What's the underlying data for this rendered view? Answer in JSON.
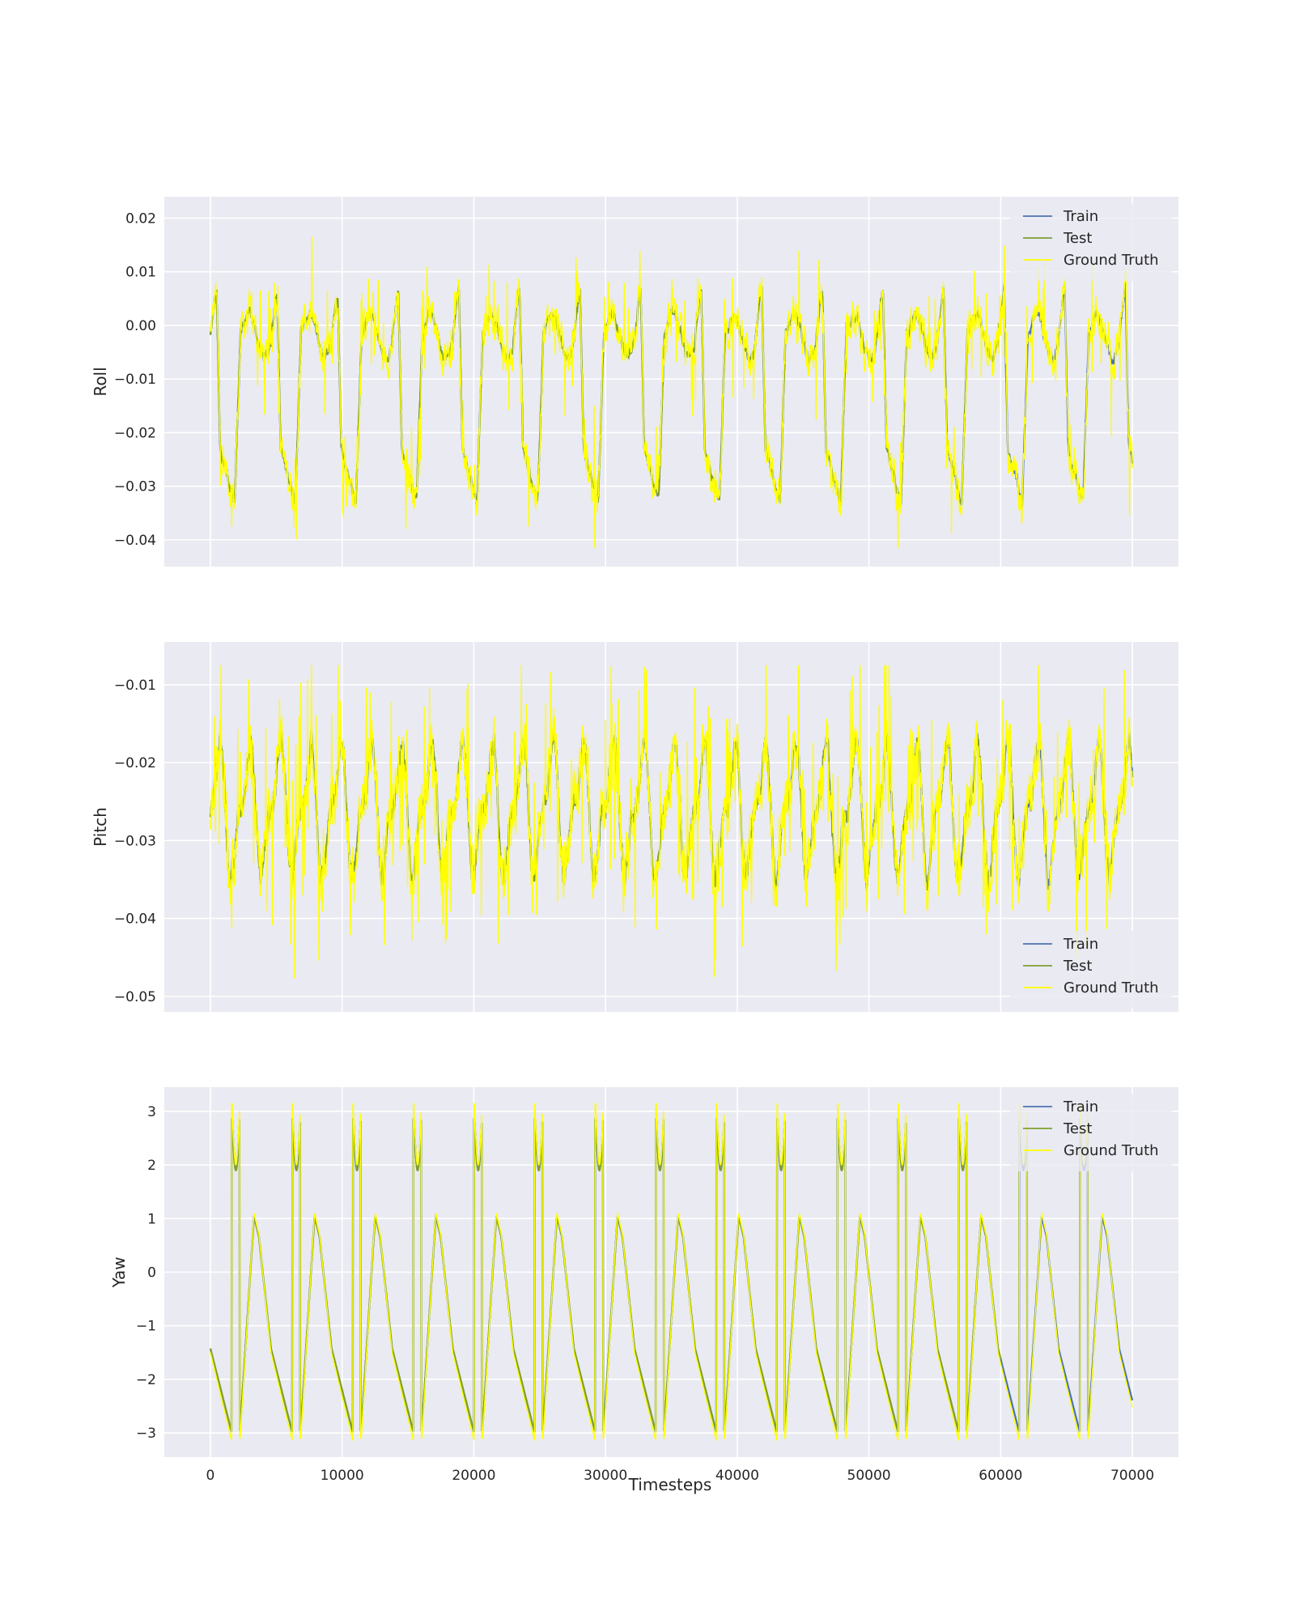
{
  "figure": {
    "xlabel": "Timesteps",
    "x_ticks": [
      0,
      10000,
      20000,
      30000,
      40000,
      50000,
      60000,
      70000
    ],
    "xlim": [
      -3500,
      73500
    ],
    "colors": {
      "train": "#4c72b0",
      "test": "#7f9f2f",
      "truth": "#ffff00",
      "background": "#eaeaf2",
      "grid": "#ffffff"
    }
  },
  "chart_data": [
    {
      "type": "line",
      "id": "roll",
      "ylabel": "Roll",
      "ylim": [
        -0.045,
        0.024
      ],
      "y_ticks": [
        0.02,
        0.01,
        0.0,
        -0.01,
        -0.02,
        -0.03,
        -0.04
      ],
      "y_tick_labels": [
        "0.02",
        "0.01",
        "0.00",
        "−0.01",
        "−0.02",
        "−0.03",
        "−0.04"
      ],
      "legend": {
        "position": "top-right",
        "entries": [
          "Train",
          "Test",
          "Ground Truth"
        ]
      },
      "x": [
        0,
        10000,
        20000,
        30000,
        40000,
        50000,
        60000,
        70000
      ],
      "series": [
        {
          "name": "Train",
          "color": "#4c72b0",
          "approx_range": [
            -0.035,
            0.009
          ],
          "note_values": "x from 0 to 70000, periodic about every 4600 steps"
        },
        {
          "name": "Test",
          "color": "#7f9f2f",
          "approx_range": [
            -0.036,
            0.008
          ],
          "note_values": "x from 0 to 60000"
        },
        {
          "name": "Ground Truth",
          "color": "#ffff00",
          "approx_range": [
            -0.042,
            0.021
          ],
          "note_values": "x from 0 to 70000"
        }
      ]
    },
    {
      "type": "line",
      "id": "pitch",
      "ylabel": "Pitch",
      "ylim": [
        -0.052,
        -0.0045
      ],
      "y_ticks": [
        -0.01,
        -0.02,
        -0.03,
        -0.04,
        -0.05
      ],
      "y_tick_labels": [
        "−0.01",
        "−0.02",
        "−0.03",
        "−0.04",
        "−0.05"
      ],
      "legend": {
        "position": "bottom-right",
        "entries": [
          "Train",
          "Test",
          "Ground Truth"
        ]
      },
      "x": [
        0,
        10000,
        20000,
        30000,
        40000,
        50000,
        60000,
        70000
      ],
      "series": [
        {
          "name": "Train",
          "color": "#4c72b0",
          "approx_range": [
            -0.04,
            -0.016
          ]
        },
        {
          "name": "Test",
          "color": "#7f9f2f",
          "approx_range": [
            -0.04,
            -0.016
          ]
        },
        {
          "name": "Ground Truth",
          "color": "#ffff00",
          "approx_range": [
            -0.05,
            -0.0075
          ]
        }
      ]
    },
    {
      "type": "line",
      "id": "yaw",
      "ylabel": "Yaw",
      "ylim": [
        -3.45,
        3.45
      ],
      "y_ticks": [
        3,
        2,
        1,
        0,
        -1,
        -2,
        -3
      ],
      "y_tick_labels": [
        "3",
        "2",
        "1",
        "0",
        "−1",
        "−2",
        "−3"
      ],
      "legend": {
        "position": "top-right",
        "entries": [
          "Train",
          "Test",
          "Ground Truth"
        ]
      },
      "x": [
        0,
        10000,
        20000,
        30000,
        40000,
        50000,
        60000,
        70000
      ],
      "series": [
        {
          "name": "Train",
          "color": "#4c72b0",
          "approx_range": [
            -3.0,
            2.8
          ]
        },
        {
          "name": "Test",
          "color": "#7f9f2f",
          "approx_range": [
            -3.0,
            2.8
          ]
        },
        {
          "name": "Ground Truth",
          "color": "#ffff00",
          "approx_range": [
            -3.14,
            3.14
          ]
        }
      ]
    }
  ]
}
